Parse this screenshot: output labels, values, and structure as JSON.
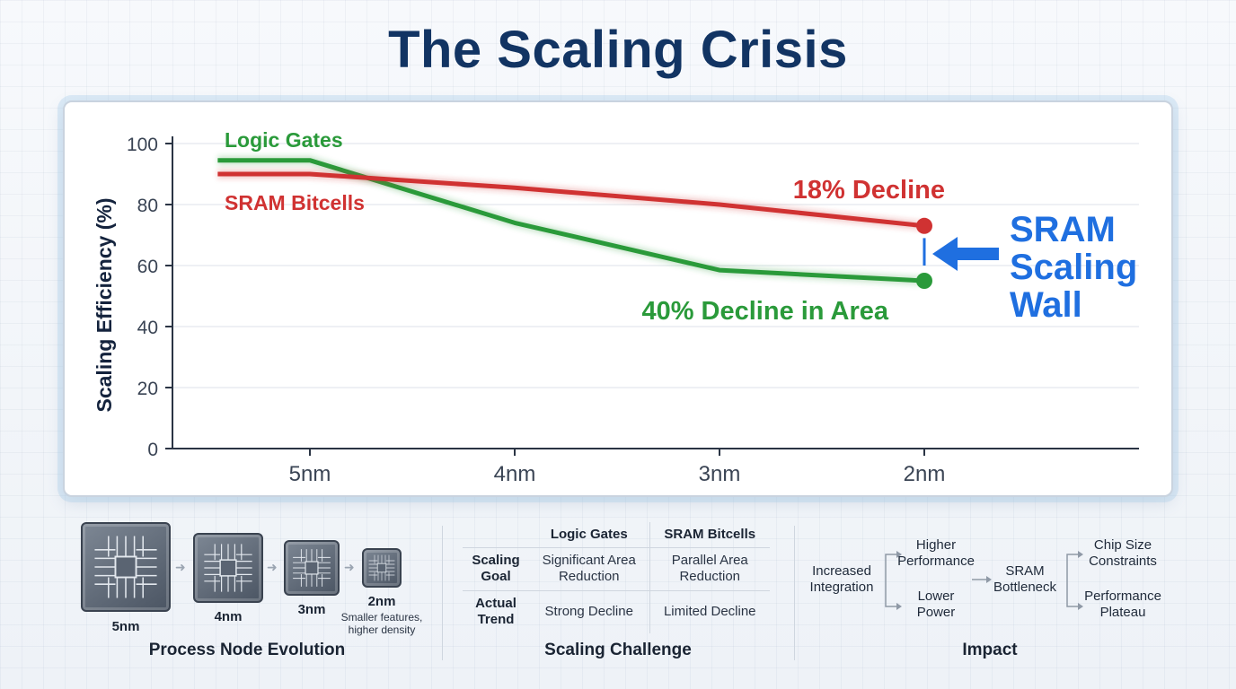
{
  "title": "The Scaling Crisis",
  "chart_data": {
    "type": "line",
    "categories": [
      "5nm",
      "4nm",
      "3nm",
      "2nm"
    ],
    "ylabel": "Scaling Efficiency (%)",
    "xlabel": "",
    "ylim": [
      0,
      100
    ],
    "yticks": [
      "0",
      "20",
      "40",
      "60",
      "80",
      "100"
    ],
    "grid": true,
    "series": [
      {
        "name": "Logic Gates",
        "color": "#2a9a3a",
        "points": [
          [
            -0.45,
            94.5
          ],
          [
            0,
            94.5
          ],
          [
            1,
            74
          ],
          [
            2,
            58.5
          ],
          [
            3,
            55
          ]
        ],
        "end_annotation": "40% Decline in Area"
      },
      {
        "name": "SRAM Bitcells",
        "color": "#d03232",
        "points": [
          [
            -0.45,
            90
          ],
          [
            0,
            90
          ],
          [
            1,
            85.5
          ],
          [
            2,
            80
          ],
          [
            3,
            73
          ]
        ],
        "end_annotation": "18% Decline"
      }
    ],
    "callout": {
      "line1": "SRAM",
      "line2": "Scaling",
      "line3": "Wall",
      "color": "#1f6fe0"
    }
  },
  "process": {
    "title": "Process Node Evolution",
    "nodes": [
      "5nm",
      "4nm",
      "3nm",
      "2nm"
    ],
    "note": "Smaller features, higher density"
  },
  "challenge": {
    "title": "Scaling Challenge",
    "col1": "Logic Gates",
    "col2": "SRAM Bitcells",
    "row1_head": "Scaling Goal",
    "row1_c1": "Significant Area Reduction",
    "row1_c2": "Parallel Area Reduction",
    "row2_head": "Actual Trend",
    "row2_c1": "Strong Decline",
    "row2_c2": "Limited Decline"
  },
  "impact": {
    "title": "Impact",
    "start": "Increased Integration",
    "branch_a": "Higher Performance",
    "branch_b": "Lower Power",
    "middle": "SRAM Bottleneck",
    "out_a": "Chip Size Constraints",
    "out_b": "Performance Plateau"
  }
}
